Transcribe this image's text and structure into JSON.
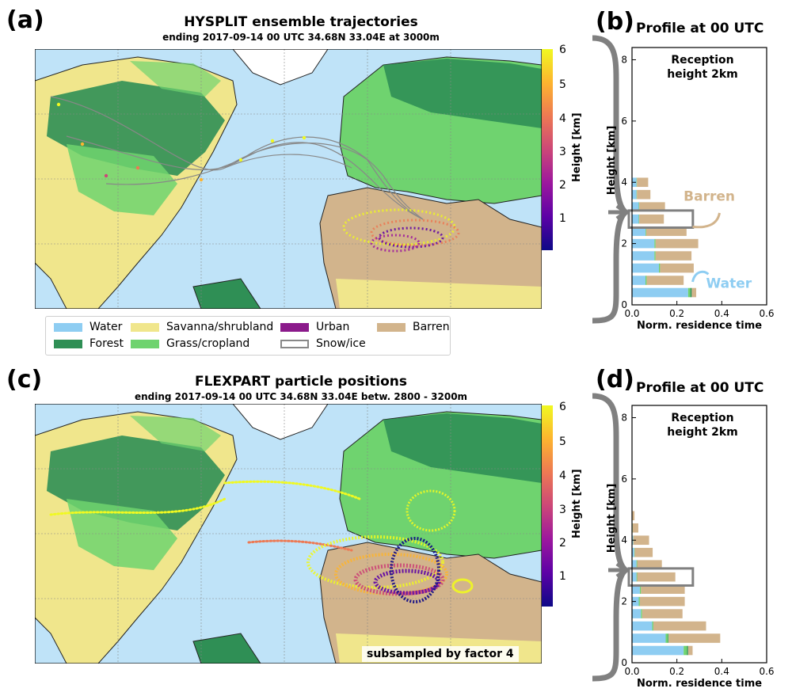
{
  "panels": {
    "a": {
      "label": "(a)",
      "title": "HYSPLIT ensemble trajectories",
      "subtitle": "ending 2017-09-14 00 UTC 34.68N 33.04E at 3000m"
    },
    "b": {
      "label": "(b)",
      "title": "Profile at 00 UTC"
    },
    "c": {
      "label": "(c)",
      "title": "FLEXPART particle positions",
      "subtitle": "ending 2017-09-14 00 UTC 34.68N 33.04E betw. 2800 - 3200m",
      "note": "subsampled by factor 4"
    },
    "d": {
      "label": "(d)",
      "title": "Profile at 00 UTC"
    }
  },
  "colorbar": {
    "label": "Height [km]",
    "ticks": [
      "1",
      "2",
      "3",
      "4",
      "5",
      "6"
    ],
    "colors": [
      "#0d0887",
      "#5c01a6",
      "#9c179e",
      "#cc4778",
      "#ed7953",
      "#fdb42f",
      "#f0f921"
    ]
  },
  "legend": [
    {
      "label": "Water",
      "color": "#8ecdf2"
    },
    {
      "label": "Forest",
      "color": "#2f8f55"
    },
    {
      "label": "Savanna/shrubland",
      "color": "#f0e68c"
    },
    {
      "label": "Grass/cropland",
      "color": "#6fd36f"
    },
    {
      "label": "Urban",
      "color": "#8b1a8b"
    },
    {
      "label": "Snow/ice",
      "color": "#ffffff"
    },
    {
      "label": "Barren",
      "color": "#d2b48c"
    }
  ],
  "chart_data": [
    {
      "panel": "b",
      "type": "bar",
      "orientation": "horizontal-stacked",
      "title": "Profile at 00 UTC",
      "annotation": "Reception height 2km",
      "annotation_lines": [
        "Reception",
        "height 2km"
      ],
      "xlabel": "Norm. residence time",
      "ylabel": "Height [km]",
      "xlim": [
        0,
        0.6
      ],
      "ylim": [
        0,
        8.4
      ],
      "xticks": [
        "0.0",
        "0.2",
        "0.4",
        "0.6"
      ],
      "yticks": [
        "0",
        "2",
        "4",
        "6",
        "8"
      ],
      "heights": [
        0.4,
        0.8,
        1.2,
        1.6,
        2.0,
        2.4,
        2.8,
        3.2,
        3.6,
        4.0
      ],
      "series": [
        {
          "name": "Water",
          "color": "#8ecdf2",
          "values": [
            0.25,
            0.06,
            0.12,
            0.1,
            0.1,
            0.06,
            0.03,
            0.03,
            0.02,
            0.02
          ]
        },
        {
          "name": "Grass/cropland",
          "color": "#6fd36f",
          "values": [
            0.01,
            0.005,
            0.005,
            0.005,
            0.005,
            0.003,
            0.002,
            0.002,
            0.002,
            0.002
          ]
        },
        {
          "name": "Forest",
          "color": "#2f8f55",
          "values": [
            0.006,
            0,
            0,
            0,
            0,
            0,
            0,
            0,
            0,
            0
          ]
        },
        {
          "name": "Barren",
          "color": "#d2b48c",
          "values": [
            0.02,
            0.165,
            0.15,
            0.16,
            0.19,
            0.18,
            0.11,
            0.115,
            0.06,
            0.05
          ]
        }
      ],
      "highlight_height": 2.8,
      "callouts": [
        {
          "text": "Barren",
          "color": "#d2b48c"
        },
        {
          "text": "Water",
          "color": "#8ecdf2"
        }
      ]
    },
    {
      "panel": "d",
      "type": "bar",
      "orientation": "horizontal-stacked",
      "title": "Profile at 00 UTC",
      "annotation": "Reception height 2km",
      "annotation_lines": [
        "Reception",
        "height 2km"
      ],
      "xlabel": "Norm. residence time",
      "ylabel": "Height [km]",
      "xlim": [
        0,
        0.6
      ],
      "ylim": [
        0,
        8.4
      ],
      "xticks": [
        "0.0",
        "0.2",
        "0.4",
        "0.6"
      ],
      "yticks": [
        "0",
        "2",
        "4",
        "6",
        "8"
      ],
      "heights": [
        0.4,
        0.8,
        1.2,
        1.6,
        2.0,
        2.4,
        2.8,
        3.2,
        3.6,
        4.0,
        4.4,
        4.8
      ],
      "series": [
        {
          "name": "Water",
          "color": "#8ecdf2",
          "values": [
            0.23,
            0.15,
            0.09,
            0.04,
            0.03,
            0.035,
            0.02,
            0.02,
            0.01,
            0.005,
            0.002,
            0.001
          ]
        },
        {
          "name": "Grass/cropland",
          "color": "#6fd36f",
          "values": [
            0.015,
            0.01,
            0.005,
            0.005,
            0.005,
            0.005,
            0.003,
            0.003,
            0.002,
            0.001,
            0.001,
            0
          ]
        },
        {
          "name": "Forest",
          "color": "#2f8f55",
          "values": [
            0.005,
            0.003,
            0,
            0,
            0,
            0,
            0,
            0,
            0,
            0,
            0,
            0
          ]
        },
        {
          "name": "Barren",
          "color": "#d2b48c",
          "values": [
            0.02,
            0.23,
            0.235,
            0.18,
            0.2,
            0.195,
            0.17,
            0.11,
            0.08,
            0.07,
            0.025,
            0.01
          ]
        }
      ],
      "highlight_height": 2.8
    }
  ]
}
